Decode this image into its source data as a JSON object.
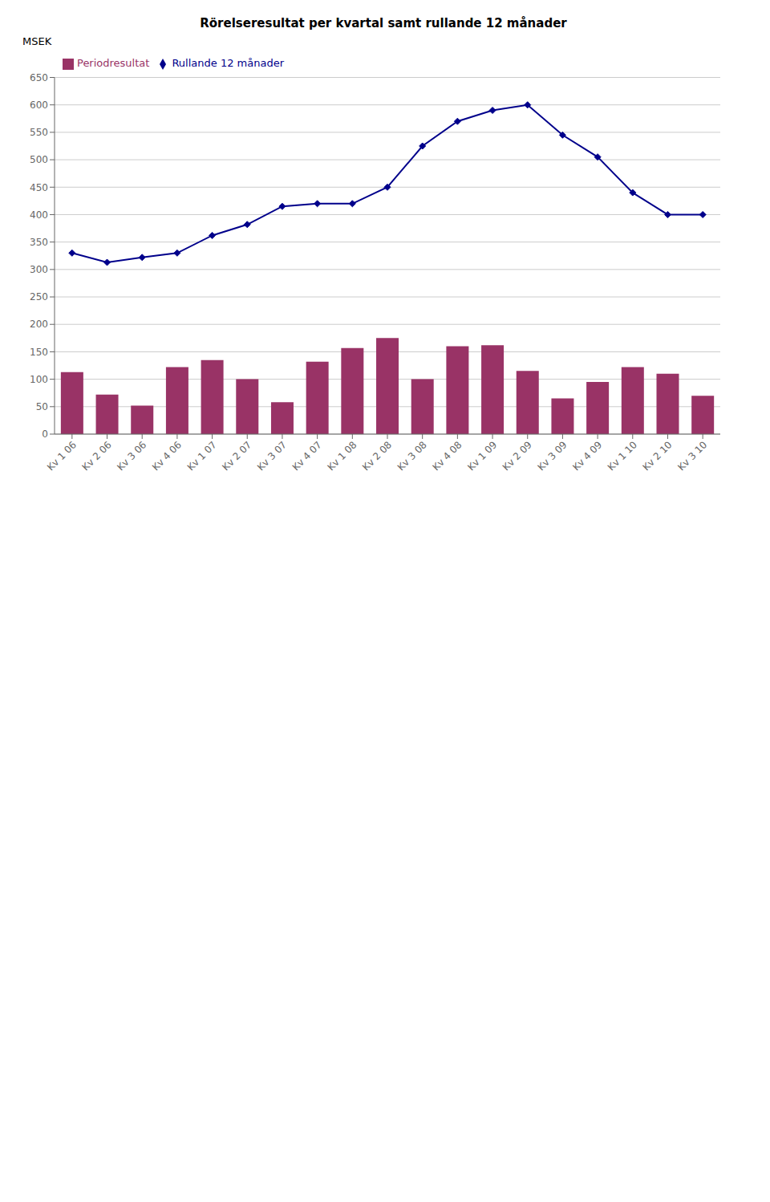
{
  "chart_data": {
    "type": "bar",
    "title": "Rörelseresultat per kvartal samt rullande 12 månader",
    "y_label": "MSEK",
    "categories": [
      "Kv 1 06",
      "Kv 2 06",
      "Kv 3 06",
      "Kv 4 06",
      "Kv 1 07",
      "Kv 2 07",
      "Kv 3 07",
      "Kv 4 07",
      "Kv 1 08",
      "Kv 2 08",
      "Kv 3 08",
      "Kv 4 08",
      "Kv 1 09",
      "Kv 2 09",
      "Kv 3 09",
      "Kv 4 09",
      "Kv 1 10",
      "Kv 2 10",
      "Kv 3 10"
    ],
    "series": [
      {
        "name": "Periodresultat",
        "type": "bar",
        "color": "#993366",
        "values": [
          113,
          72,
          52,
          122,
          135,
          100,
          58,
          132,
          157,
          175,
          100,
          160,
          162,
          115,
          65,
          95,
          122,
          110,
          70
        ]
      },
      {
        "name": "Rullande 12 månader",
        "type": "line",
        "color": "#00008B",
        "marker": "diamond",
        "line_style": "solid",
        "values": [
          330,
          313,
          322,
          330,
          362,
          382,
          415,
          420,
          420,
          450,
          525,
          570,
          590,
          600,
          545,
          505,
          440,
          400,
          400
        ]
      }
    ],
    "ylim": [
      0,
      650
    ],
    "yticks": [
      0,
      50,
      100,
      150,
      200,
      250,
      300,
      350,
      400,
      450,
      500,
      550,
      600,
      650
    ],
    "grid": true,
    "legend": "upper left"
  }
}
